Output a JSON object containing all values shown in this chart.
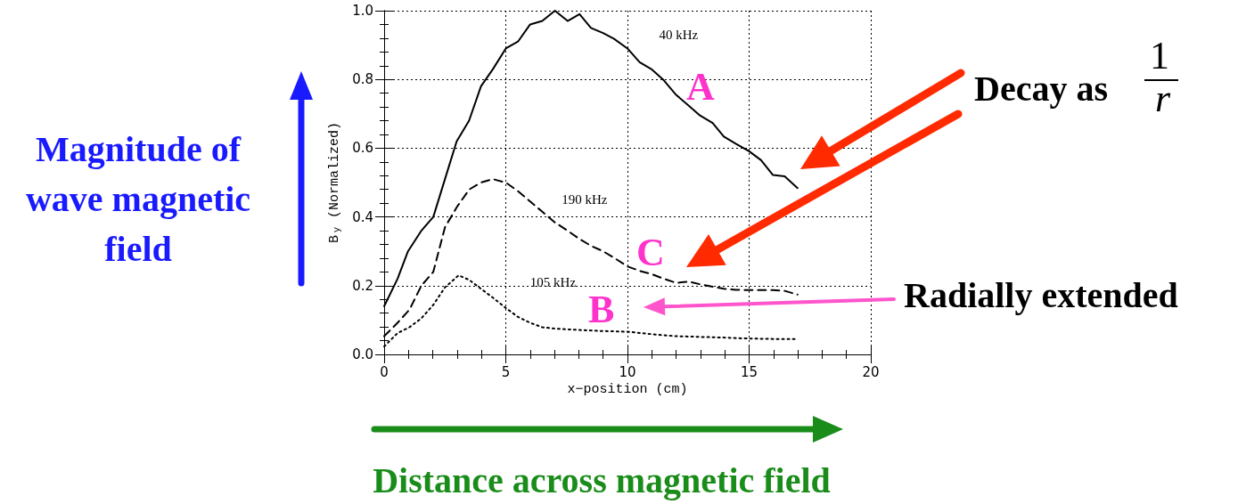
{
  "chart_data": {
    "type": "line",
    "xlabel": "x−position (cm)",
    "ylabel": "B$_{y}$ (Normalized)",
    "xlim": [
      0,
      20
    ],
    "xticks": [
      0,
      5,
      10,
      15,
      20
    ],
    "ylim": [
      0,
      1
    ],
    "yticks": [
      {
        "value": 0,
        "label": "0.0"
      },
      {
        "value": 0.2,
        "label": "0.2"
      },
      {
        "value": 0.4,
        "label": "0.4"
      },
      {
        "value": 0.6,
        "label": "0.6"
      },
      {
        "value": 0.8,
        "label": "0.8"
      },
      {
        "value": 1,
        "label": "1.0"
      }
    ],
    "grid": true,
    "marker": "none",
    "series": [
      {
        "name": "40 kHz",
        "color": "#000000",
        "line_style": "solid",
        "x": [
          0,
          0.55,
          0.98,
          1.53,
          2.02,
          2.5,
          2.98,
          3.49,
          3.98,
          4.47,
          5.0,
          5.5,
          6.0,
          6.5,
          7.02,
          7.54,
          8.03,
          8.5,
          9.0,
          9.45,
          10.0,
          10.5,
          10.98,
          11.46,
          12.0,
          12.5,
          12.98,
          13.5,
          13.96,
          14.45,
          15.0,
          15.49,
          15.98,
          16.46,
          16.99
        ],
        "values": [
          0.14,
          0.22,
          0.3,
          0.36,
          0.4,
          0.51,
          0.62,
          0.68,
          0.78,
          0.83,
          0.89,
          0.91,
          0.96,
          0.97,
          1.0,
          0.97,
          0.99,
          0.95,
          0.935,
          0.918,
          0.89,
          0.85,
          0.83,
          0.8,
          0.755,
          0.725,
          0.695,
          0.673,
          0.634,
          0.613,
          0.591,
          0.565,
          0.522,
          0.518,
          0.484
        ]
      },
      {
        "name": "190 kHz",
        "color": "#000000",
        "line_style": "dashed",
        "x": [
          0,
          0.55,
          1.04,
          1.53,
          2.02,
          2.5,
          3.0,
          3.5,
          3.98,
          4.47,
          5.0,
          5.5,
          6.0,
          6.5,
          7.0,
          7.54,
          8.0,
          8.5,
          9.0,
          9.45,
          10.0,
          10.5,
          10.98,
          11.46,
          12.0,
          12.5,
          12.98,
          13.5,
          13.96,
          14.45,
          15.0,
          15.49,
          15.98,
          16.46,
          16.99
        ],
        "values": [
          0.053,
          0.092,
          0.13,
          0.2,
          0.24,
          0.37,
          0.43,
          0.48,
          0.5,
          0.51,
          0.5,
          0.475,
          0.445,
          0.415,
          0.385,
          0.36,
          0.337,
          0.316,
          0.3,
          0.281,
          0.256,
          0.243,
          0.234,
          0.221,
          0.208,
          0.212,
          0.204,
          0.197,
          0.191,
          0.188,
          0.187,
          0.187,
          0.187,
          0.185,
          0.174
        ]
      },
      {
        "name": "105 kHz",
        "color": "#000000",
        "line_style": "dotted",
        "x": [
          0,
          0.55,
          1.04,
          1.53,
          2.02,
          2.5,
          3.06,
          3.49,
          3.98,
          4.47,
          5.0,
          5.5,
          6.0,
          6.5,
          7.02,
          8.03,
          9.0,
          10.0,
          10.98,
          12.0,
          12.98,
          13.96,
          15.0,
          15.98,
          16.99
        ],
        "values": [
          0.023,
          0.062,
          0.079,
          0.105,
          0.144,
          0.195,
          0.23,
          0.217,
          0.191,
          0.165,
          0.135,
          0.109,
          0.092,
          0.079,
          0.075,
          0.071,
          0.068,
          0.066,
          0.059,
          0.053,
          0.051,
          0.049,
          0.046,
          0.045,
          0.045
        ]
      }
    ],
    "annotations": [
      "A",
      "C",
      "B",
      "Magnitude of wave magnetic field",
      "Distance across magnetic field",
      "Decay as",
      "1",
      "r",
      "Radially extended"
    ]
  }
}
